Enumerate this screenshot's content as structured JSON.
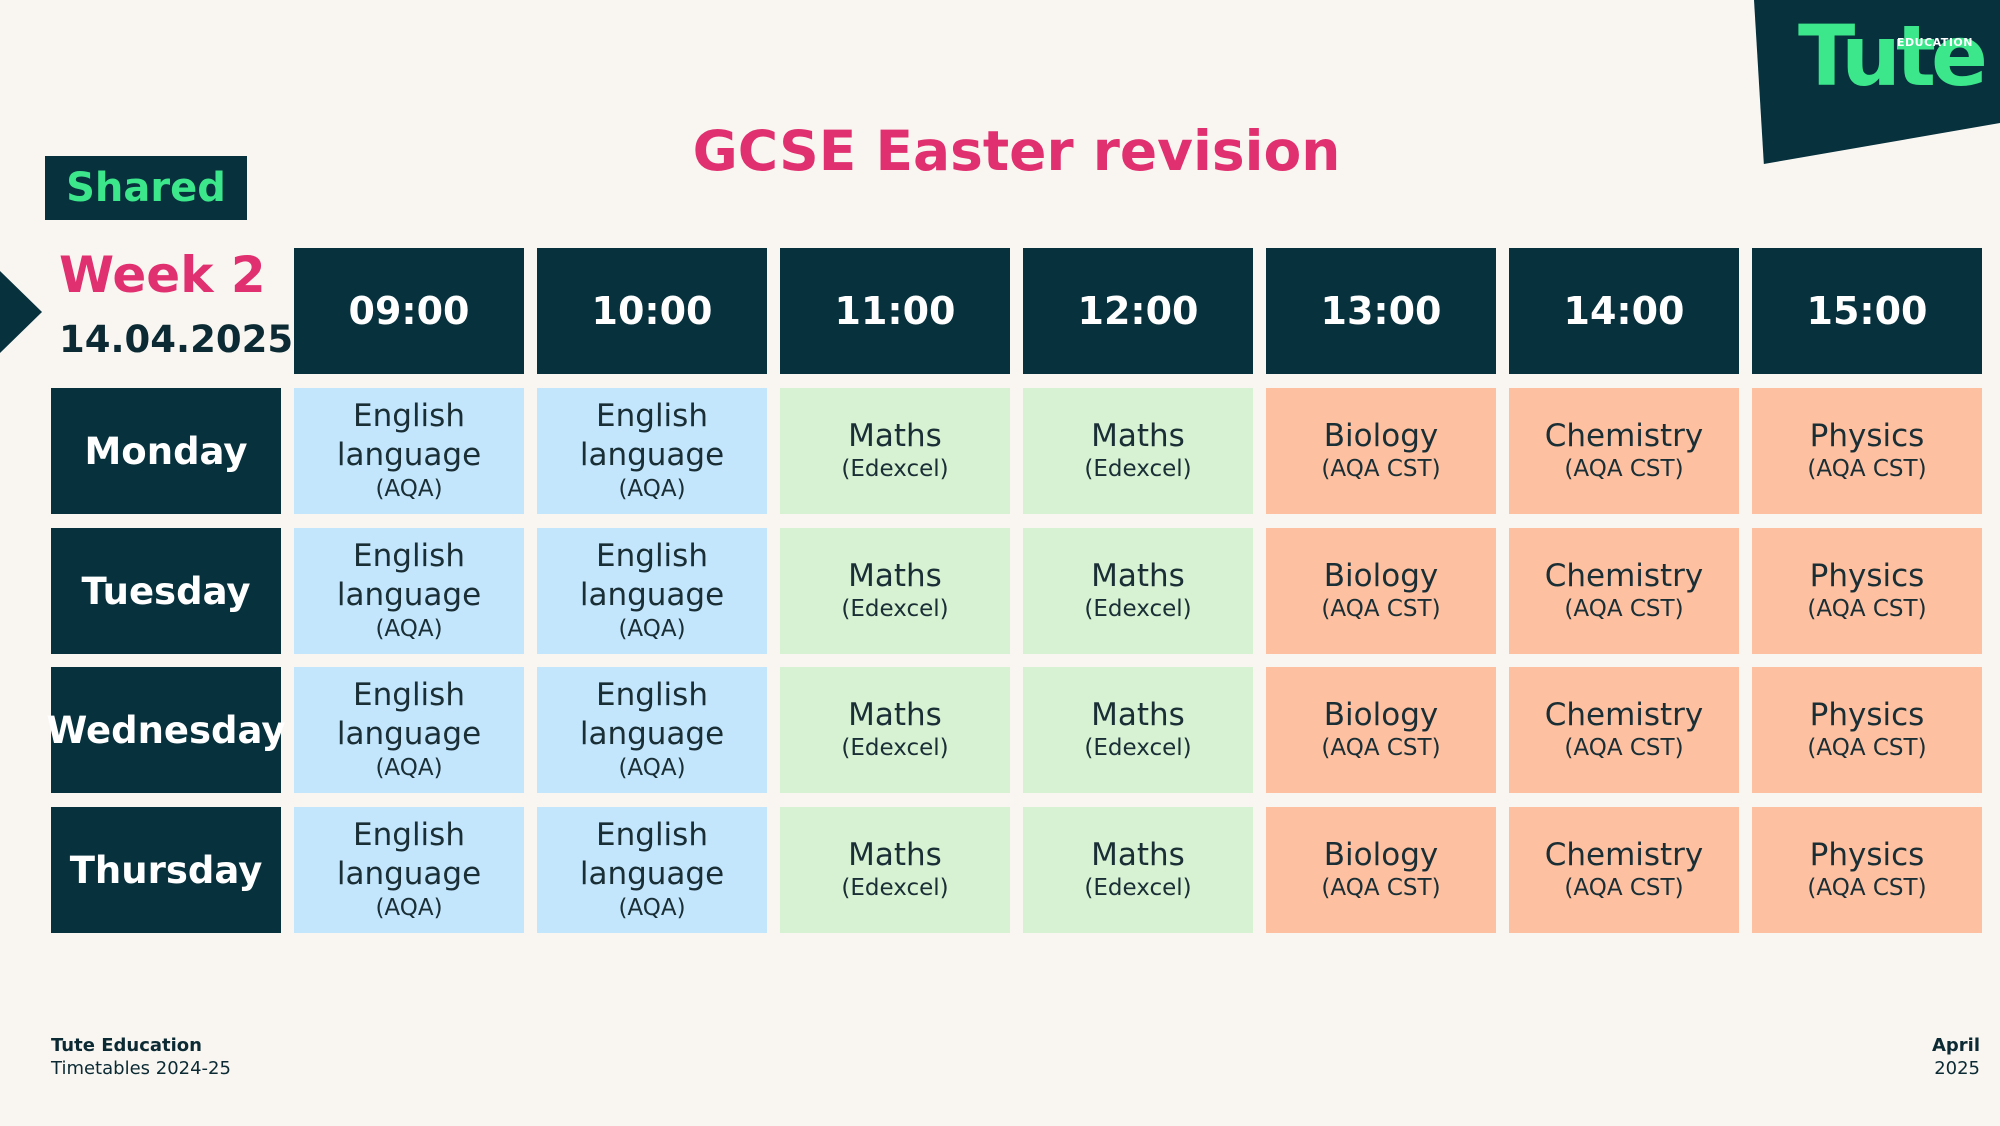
{
  "brand": {
    "logo_word": "Tute",
    "logo_sub": "EDUCATION"
  },
  "title": "GCSE Easter revision",
  "badge": "Shared",
  "week": "Week 2",
  "date": "14.04.2025",
  "colors": {
    "dark": "#06313d",
    "accent_pink": "#e0306f",
    "accent_green": "#3ce68a",
    "english": "#c3e6fd",
    "maths": "#d6f2d3",
    "science": "#fdc0a0"
  },
  "times": [
    "09:00",
    "10:00",
    "11:00",
    "12:00",
    "13:00",
    "14:00",
    "15:00"
  ],
  "days": [
    "Monday",
    "Tuesday",
    "Wednesday",
    "Thursday"
  ],
  "subjects": [
    {
      "main": "English language",
      "sub": "(AQA)",
      "color": "blue"
    },
    {
      "main": "English language",
      "sub": "(AQA)",
      "color": "blue"
    },
    {
      "main": "Maths",
      "sub": "(Edexcel)",
      "color": "green"
    },
    {
      "main": "Maths",
      "sub": "(Edexcel)",
      "color": "green"
    },
    {
      "main": "Biology",
      "sub": "(AQA CST)",
      "color": "orange"
    },
    {
      "main": "Chemistry",
      "sub": "(AQA CST)",
      "color": "orange"
    },
    {
      "main": "Physics",
      "sub": "(AQA CST)",
      "color": "orange"
    }
  ],
  "footer": {
    "org": "Tute Education",
    "subtitle": "Timetables 2024-25",
    "month": "April",
    "year": "2025"
  }
}
